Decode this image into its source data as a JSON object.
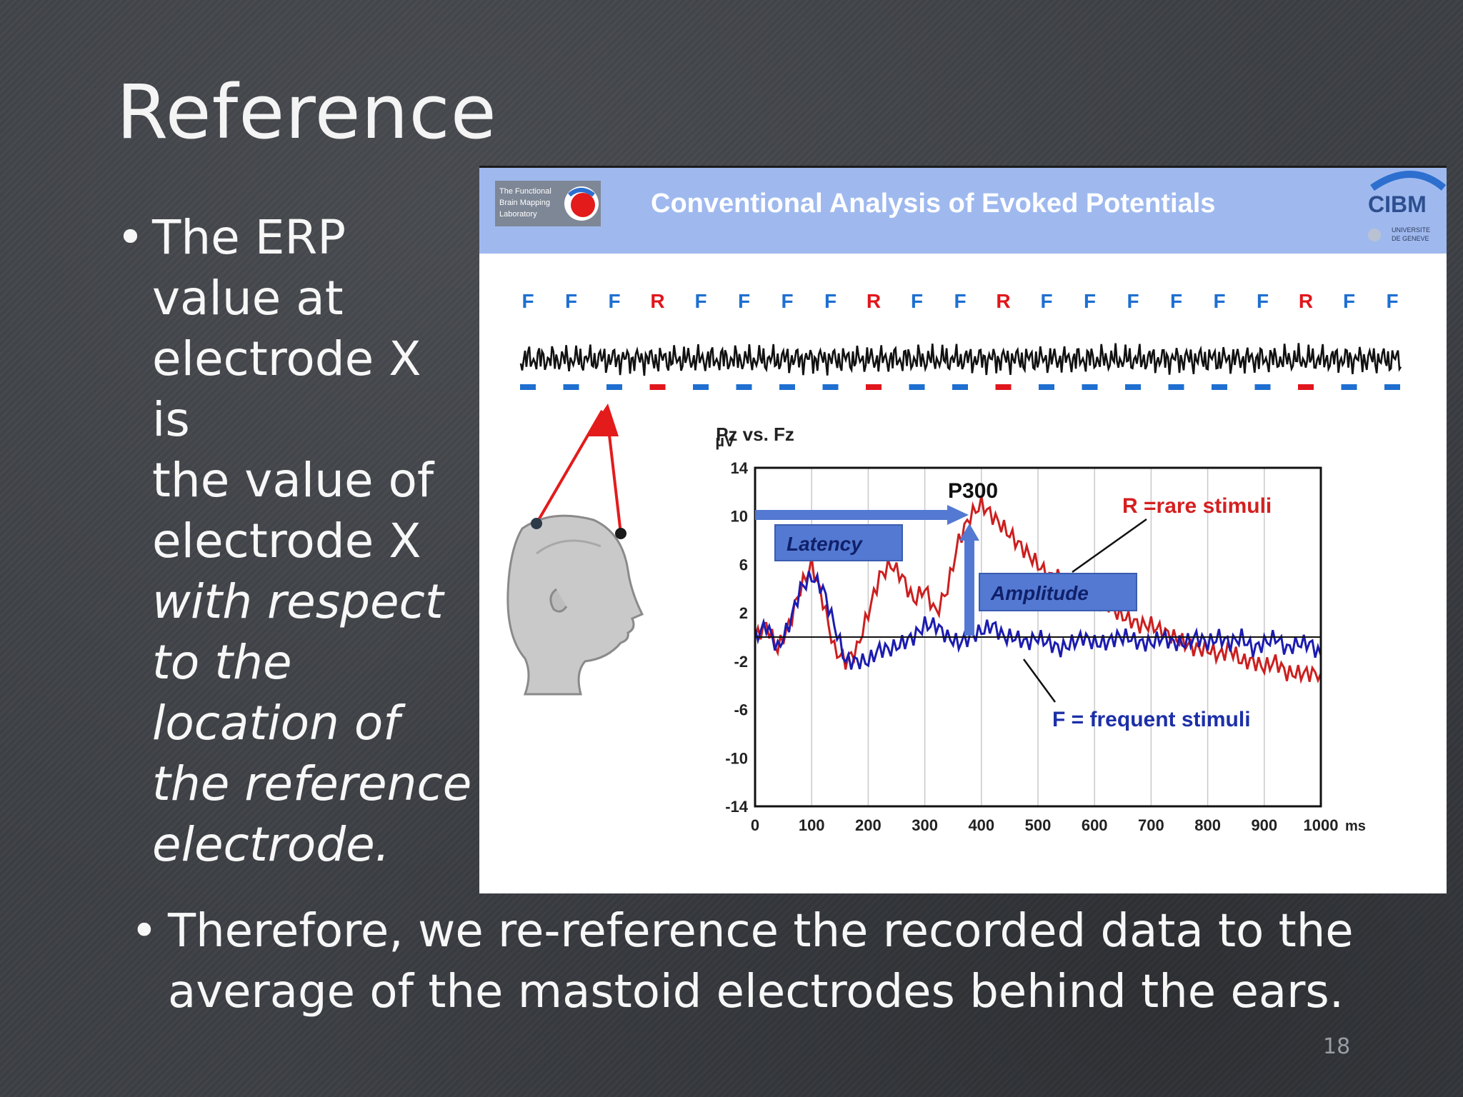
{
  "slide": {
    "title": "Reference",
    "bullet_left": {
      "line1": "The ERP",
      "line2": "value at",
      "line3": "electrode X is",
      "line4": "the value of",
      "line5": "electrode X",
      "italic1": "with respect",
      "italic2": "to the",
      "italic3": "location of",
      "italic4": "the reference",
      "italic5": "electrode."
    },
    "bullet_bottom": {
      "line1": "Therefore, we re-reference the recorded data to the",
      "line2": "average of the mastoid electrodes behind the ears."
    },
    "page_number": "18",
    "bullet_char": "•"
  },
  "figure": {
    "banner_title": "Conventional Analysis of Evoked Potentials",
    "logo_left_text": [
      "The Functional",
      "Brain Mapping",
      "Laboratory"
    ],
    "logo_right_text": "CIBM",
    "logo_right_sub": [
      "UNIVERSITE",
      "DE GENEVE"
    ],
    "stimulus_sequence": [
      "F",
      "F",
      "F",
      "R",
      "F",
      "F",
      "F",
      "F",
      "R",
      "F",
      "F",
      "R",
      "F",
      "F",
      "F",
      "F",
      "F",
      "F",
      "R",
      "F",
      "F"
    ],
    "colors": {
      "frequent": "#1e6fd0",
      "rare": "#e0161c",
      "banner": "#9fb9ef",
      "banner_text": "#ffffff",
      "callout_box": "#5479d2",
      "callout_text": "#10206a"
    }
  },
  "chart_data": {
    "type": "line",
    "title": "Pz vs. Fz",
    "ylabel": "µV",
    "xlabel": "ms",
    "xlim": [
      0,
      1000
    ],
    "ylim": [
      -14,
      14
    ],
    "xticks": [
      0,
      100,
      200,
      300,
      400,
      500,
      600,
      700,
      800,
      900,
      1000
    ],
    "xtick_labels": [
      "0",
      "100",
      "200",
      "300",
      "400",
      "500",
      "600",
      "700",
      "800",
      "900",
      "1000"
    ],
    "xunit_label": "ms",
    "yticks": [
      14,
      10,
      6,
      2,
      -2,
      -6,
      -10,
      -14
    ],
    "ytick_labels": [
      "14",
      "10",
      "6",
      "2",
      "-2",
      "-6",
      "-10",
      "-14"
    ],
    "grid": "vertical",
    "series": [
      {
        "name": "R =rare stimuli",
        "color": "#cc1f1f",
        "x": [
          0,
          20,
          40,
          60,
          80,
          100,
          120,
          140,
          160,
          180,
          200,
          220,
          240,
          260,
          280,
          300,
          320,
          340,
          360,
          380,
          400,
          420,
          440,
          460,
          480,
          500,
          520,
          540,
          560,
          580,
          600,
          620,
          640,
          660,
          680,
          700,
          720,
          740,
          760,
          780,
          800,
          820,
          840,
          860,
          880,
          900,
          920,
          940,
          960,
          980,
          1000
        ],
        "y": [
          0,
          1,
          -1,
          1,
          4,
          6,
          3,
          -1,
          -2,
          -1,
          2,
          5,
          6,
          5,
          3,
          4,
          2,
          4,
          8,
          10,
          11,
          10,
          9,
          8,
          7,
          6,
          5,
          5,
          4,
          4,
          3,
          3,
          2,
          1.5,
          1,
          1,
          0.5,
          0,
          -0.5,
          -1,
          -1,
          -1.5,
          -1,
          -2,
          -2,
          -2.5,
          -2,
          -3,
          -3,
          -3,
          -3
        ]
      },
      {
        "name": "F = frequent stimuli",
        "color": "#1c1cb0",
        "x": [
          0,
          20,
          40,
          60,
          80,
          100,
          120,
          140,
          160,
          180,
          200,
          220,
          240,
          260,
          280,
          300,
          320,
          340,
          360,
          380,
          400,
          420,
          440,
          460,
          480,
          500,
          520,
          540,
          560,
          580,
          600,
          620,
          640,
          660,
          680,
          700,
          720,
          740,
          760,
          780,
          800,
          820,
          840,
          860,
          880,
          900,
          920,
          940,
          960,
          980,
          1000
        ],
        "y": [
          0,
          1,
          -1,
          1,
          4,
          5,
          4,
          1,
          -2,
          -2,
          -2,
          -1,
          -1,
          -0.5,
          0,
          1,
          1,
          0,
          -0.5,
          0,
          0.5,
          1,
          0,
          0,
          -0.5,
          0,
          -0.5,
          -1,
          -0.5,
          0,
          -0.5,
          -0.5,
          0,
          0,
          -0.5,
          -0.5,
          0,
          -0.5,
          -0.5,
          0,
          -0.5,
          0,
          -0.5,
          0,
          -1,
          -0.5,
          0,
          -1,
          -0.5,
          -0.5,
          -1.5
        ]
      }
    ],
    "annotations": [
      {
        "text": "P300",
        "x": 395,
        "y": 11
      },
      {
        "text": "Latency"
      },
      {
        "text": "Amplitude"
      },
      {
        "text": "R =rare stimuli"
      },
      {
        "text": "F = frequent stimuli"
      }
    ]
  }
}
